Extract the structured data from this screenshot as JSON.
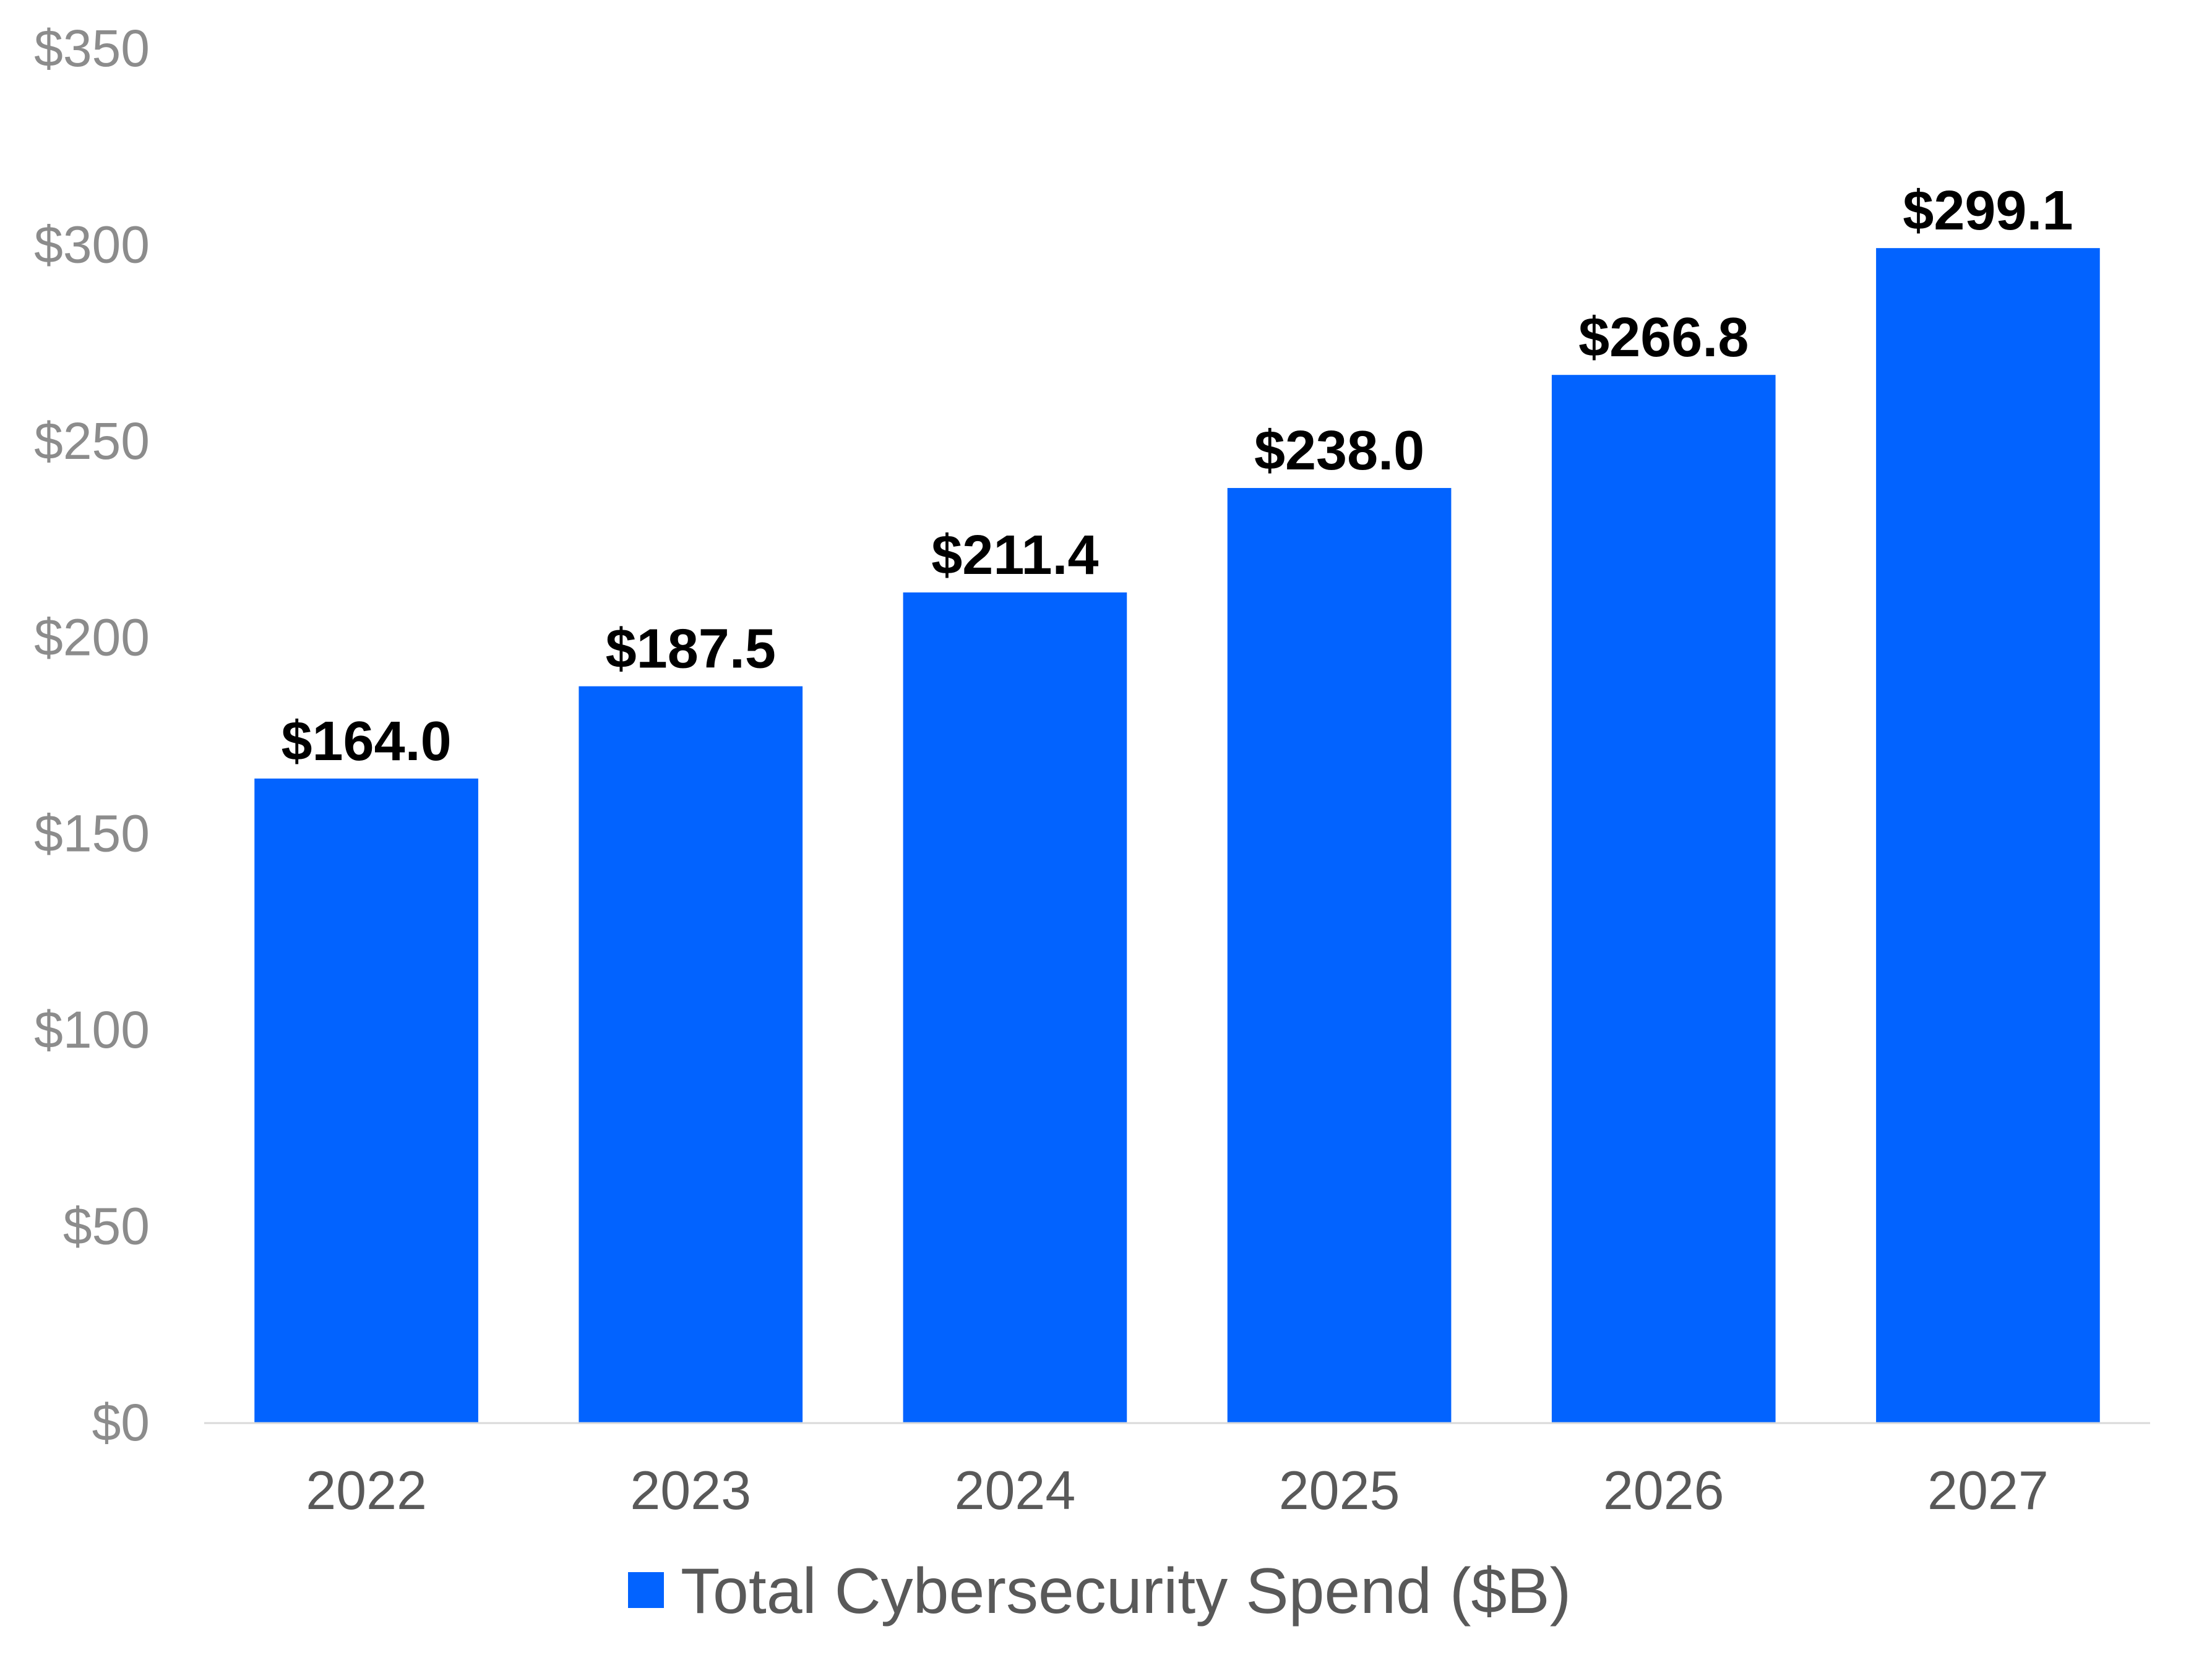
{
  "chart_data": {
    "type": "bar",
    "categories": [
      "2022",
      "2023",
      "2024",
      "2025",
      "2026",
      "2027"
    ],
    "series": [
      {
        "name": "Total Cybersecurity Spend ($B)",
        "values": [
          164.0,
          187.5,
          211.4,
          238.0,
          266.8,
          299.1
        ],
        "labels": [
          "$164.0",
          "$187.5",
          "$211.4",
          "$238.0",
          "$266.8",
          "$299.1"
        ],
        "color": "#0263ff"
      }
    ],
    "yticks": [
      0,
      50,
      100,
      150,
      200,
      250,
      300,
      350
    ],
    "ytick_labels": [
      "$0",
      "$50",
      "$100",
      "$150",
      "$200",
      "$250",
      "$300",
      "$350"
    ],
    "ylim": [
      0,
      350
    ],
    "grid": false,
    "legend": {
      "position": "bottom",
      "label": "Total Cybersecurity Spend ($B)"
    },
    "colors": {
      "bar": "#0263ff",
      "axis_line": "#d9d9d9",
      "y_tick_text": "#8c8c8c",
      "x_tick_text": "#595959",
      "data_label_text": "#000000",
      "legend_text": "#595959"
    }
  }
}
